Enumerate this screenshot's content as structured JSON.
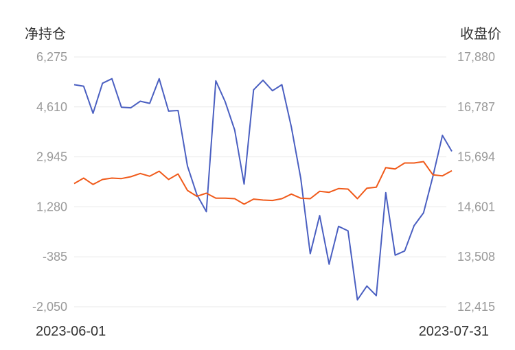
{
  "chart_data": {
    "type": "line",
    "y_left_title": "净持仓",
    "y_right_title": "收盘价",
    "y_left_ticks": [
      "6,275",
      "4,610",
      "2,945",
      "1,280",
      "-385",
      "-2,050"
    ],
    "y_right_ticks": [
      "17,880",
      "16,787",
      "15,694",
      "14,601",
      "13,508",
      "12,415"
    ],
    "y_left_range": [
      -2050,
      6275
    ],
    "y_right_range": [
      12415,
      17880
    ],
    "x_labels": [
      "2023-06-01",
      "2023-07-31"
    ],
    "grid": true,
    "legend": "none",
    "series": [
      {
        "axis": "left",
        "color": "#4a5fc1",
        "values": [
          5350,
          5300,
          4400,
          5400,
          5550,
          4600,
          4580,
          4800,
          4730,
          5550,
          4470,
          4490,
          2640,
          1680,
          1120,
          5480,
          4780,
          3840,
          2040,
          5180,
          5500,
          5150,
          5350,
          3940,
          2230,
          -280,
          990,
          -630,
          630,
          480,
          -1820,
          -1360,
          -1680,
          1750,
          -330,
          -190,
          650,
          1080,
          2300,
          3660,
          3130
        ]
      },
      {
        "axis": "right",
        "color": "#f05a1a",
        "values": [
          15110,
          15230,
          15090,
          15200,
          15230,
          15220,
          15260,
          15330,
          15270,
          15380,
          15200,
          15320,
          14960,
          14830,
          14900,
          14790,
          14790,
          14780,
          14660,
          14770,
          14750,
          14740,
          14780,
          14880,
          14790,
          14780,
          14940,
          14920,
          15000,
          14990,
          14780,
          15010,
          15030,
          15460,
          15430,
          15560,
          15560,
          15590,
          15300,
          15280,
          15390
        ]
      }
    ]
  }
}
